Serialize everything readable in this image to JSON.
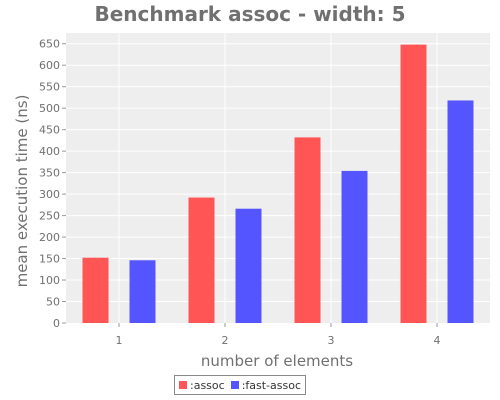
{
  "chart_data": {
    "type": "bar",
    "title": "Benchmark assoc - width: 5",
    "xlabel": "number of elements",
    "ylabel": "mean execution time (ns)",
    "categories": [
      "1",
      "2",
      "3",
      "4"
    ],
    "series": [
      {
        "name": ":assoc",
        "color": "#ff5555",
        "values": [
          152,
          292,
          432,
          648
        ]
      },
      {
        "name": ":fast-assoc",
        "color": "#5555ff",
        "values": [
          146,
          266,
          354,
          518
        ]
      }
    ],
    "ylim": [
      0,
      675
    ],
    "yticks": [
      0,
      50,
      100,
      150,
      200,
      250,
      300,
      350,
      400,
      450,
      500,
      550,
      600,
      650
    ],
    "grid": true,
    "legend_position": "bottom-center"
  },
  "colors": {
    "plot_background": "#eeeeee",
    "grid": "#ffffff",
    "text": "#707070"
  }
}
